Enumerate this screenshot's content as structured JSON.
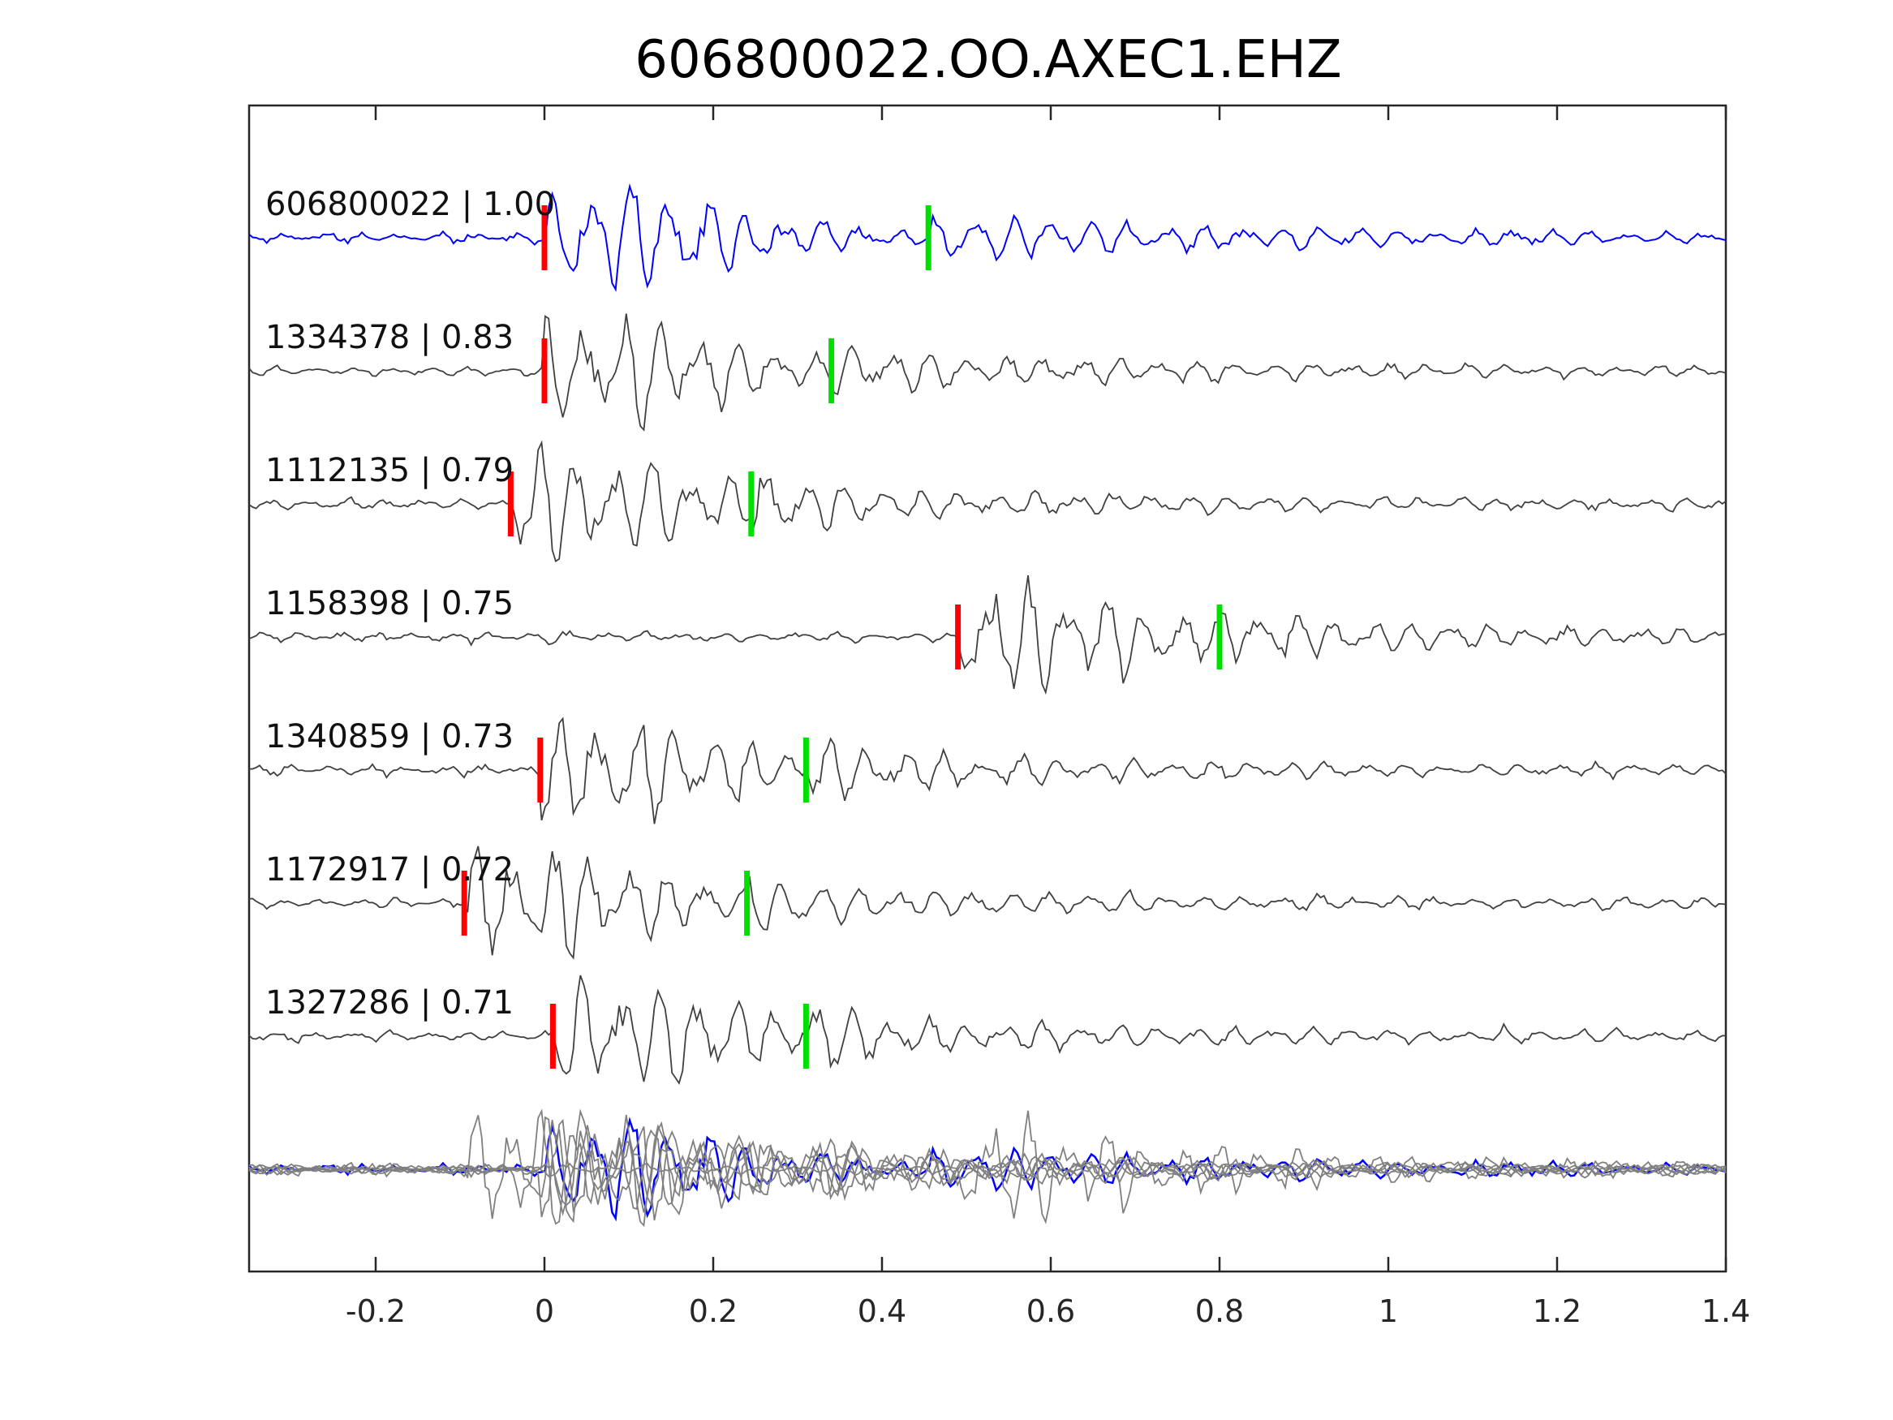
{
  "chart_data": {
    "type": "line",
    "title": "606800022.OO.AXEC1.EHZ",
    "xlabel": "",
    "ylabel": "",
    "xlim": [
      -0.35,
      1.4
    ],
    "x_ticks": [
      -0.2,
      0,
      0.2,
      0.4,
      0.6,
      0.8,
      1,
      1.2,
      1.4
    ],
    "x_tick_labels": [
      "-0.2",
      "0",
      "0.2",
      "0.4",
      "0.6",
      "0.8",
      "1",
      "1.2",
      "1.4"
    ],
    "y_ticks_shown": false,
    "grid": false,
    "colors": {
      "reference_trace": "#0000ff",
      "neighbor_trace": "#404040",
      "stack_trace": "#808080",
      "p_pick": "#ff0000",
      "s_pick": "#00e000"
    },
    "traces": [
      {
        "label": "606800022 | 1.00",
        "event_id": "606800022",
        "correlation": 1.0,
        "p_pick": 0.0,
        "s_pick": 0.455,
        "role": "reference"
      },
      {
        "label": "1334378 | 0.83",
        "event_id": "1334378",
        "correlation": 0.83,
        "p_pick": 0.0,
        "s_pick": 0.34,
        "role": "neighbor"
      },
      {
        "label": "1112135 | 0.79",
        "event_id": "1112135",
        "correlation": 0.79,
        "p_pick": -0.04,
        "s_pick": 0.245,
        "role": "neighbor"
      },
      {
        "label": "1158398 | 0.75",
        "event_id": "1158398",
        "correlation": 0.75,
        "p_pick": 0.49,
        "s_pick": 0.8,
        "role": "neighbor"
      },
      {
        "label": "1340859 | 0.73",
        "event_id": "1340859",
        "correlation": 0.73,
        "p_pick": -0.005,
        "s_pick": 0.31,
        "role": "neighbor"
      },
      {
        "label": "1172917 | 0.72",
        "event_id": "1172917",
        "correlation": 0.72,
        "p_pick": -0.095,
        "s_pick": 0.24,
        "role": "neighbor"
      },
      {
        "label": "1327286 | 0.71",
        "event_id": "1327286",
        "correlation": 0.71,
        "p_pick": 0.01,
        "s_pick": 0.31,
        "role": "neighbor"
      }
    ],
    "overlay": {
      "description_shown": false,
      "traces_overlaid": 7
    }
  }
}
